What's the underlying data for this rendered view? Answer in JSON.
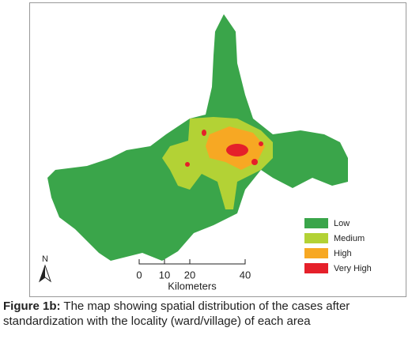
{
  "legend": {
    "items": [
      {
        "label": "Low",
        "color": "#3aa54a"
      },
      {
        "label": "Medium",
        "color": "#b3d235"
      },
      {
        "label": "High",
        "color": "#f7a823"
      },
      {
        "label": "Very High",
        "color": "#e5202a"
      }
    ]
  },
  "scale_bar": {
    "ticks": [
      "0",
      "10",
      "20",
      "40"
    ],
    "unit": "Kilometers"
  },
  "north_arrow": {
    "label": "N"
  },
  "caption": {
    "label": "Figure 1b:",
    "lines": [
      "The map showing spatial distribution of the cases after",
      "standardization with the locality (ward/village) of each area"
    ]
  }
}
